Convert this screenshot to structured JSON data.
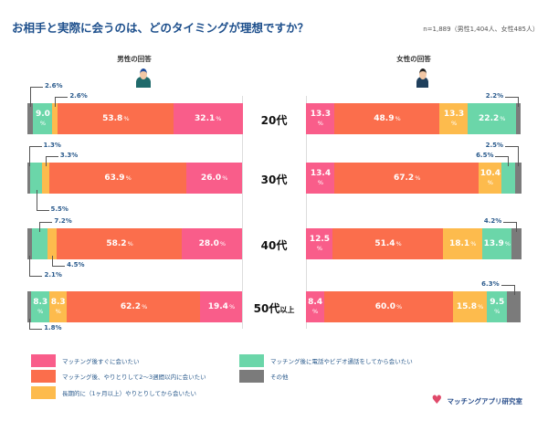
{
  "title": "お相手と実際に会うのは、どのタイミングが理想ですか？",
  "sample": "n=1,889（男性1,404人、女性485人）",
  "logo_text": "マッチングアプリ研究室",
  "chart_data": {
    "type": "bar",
    "orientation": "horizontal-stacked-100",
    "title": "お相手と実際に会うのは、どのタイミングが理想ですか？",
    "categories": [
      "20代",
      "30代",
      "40代",
      "50代以上"
    ],
    "category_display": [
      {
        "main": "20代",
        "sub": ""
      },
      {
        "main": "30代",
        "sub": ""
      },
      {
        "main": "40代",
        "sub": ""
      },
      {
        "main": "50代",
        "sub": "以上"
      }
    ],
    "unit": "%",
    "legend_position": "bottom",
    "series_labels": [
      {
        "name": "マッチング後すぐに会いたい",
        "color": "#f95d8a"
      },
      {
        "name": "マッチング後、やりとりして2〜3週間以内に会いたい",
        "color": "#fb6e4c"
      },
      {
        "name": "長期的に（1ヶ月以上）やりとりしてから会いたい",
        "color": "#fdbb4d"
      },
      {
        "name": "マッチング後に電話やビデオ通話をしてから会いたい",
        "color": "#6bd6a9"
      },
      {
        "name": "その他",
        "color": "#7b7b7b"
      }
    ],
    "panels": [
      {
        "title": "男性の回答",
        "values": [
          [
            32.1,
            53.8,
            2.6,
            9.0,
            2.6
          ],
          [
            26.0,
            63.9,
            3.3,
            5.5,
            1.3
          ],
          [
            28.0,
            58.2,
            4.5,
            7.2,
            2.1
          ],
          [
            19.4,
            62.2,
            8.3,
            8.3,
            1.8
          ]
        ]
      },
      {
        "title": "女性の回答",
        "values": [
          [
            13.3,
            48.9,
            13.3,
            22.2,
            2.2
          ],
          [
            13.4,
            67.2,
            10.4,
            6.5,
            2.5
          ],
          [
            12.5,
            51.4,
            18.1,
            13.9,
            4.2
          ],
          [
            8.4,
            60.0,
            15.8,
            9.5,
            6.3
          ]
        ]
      }
    ]
  }
}
